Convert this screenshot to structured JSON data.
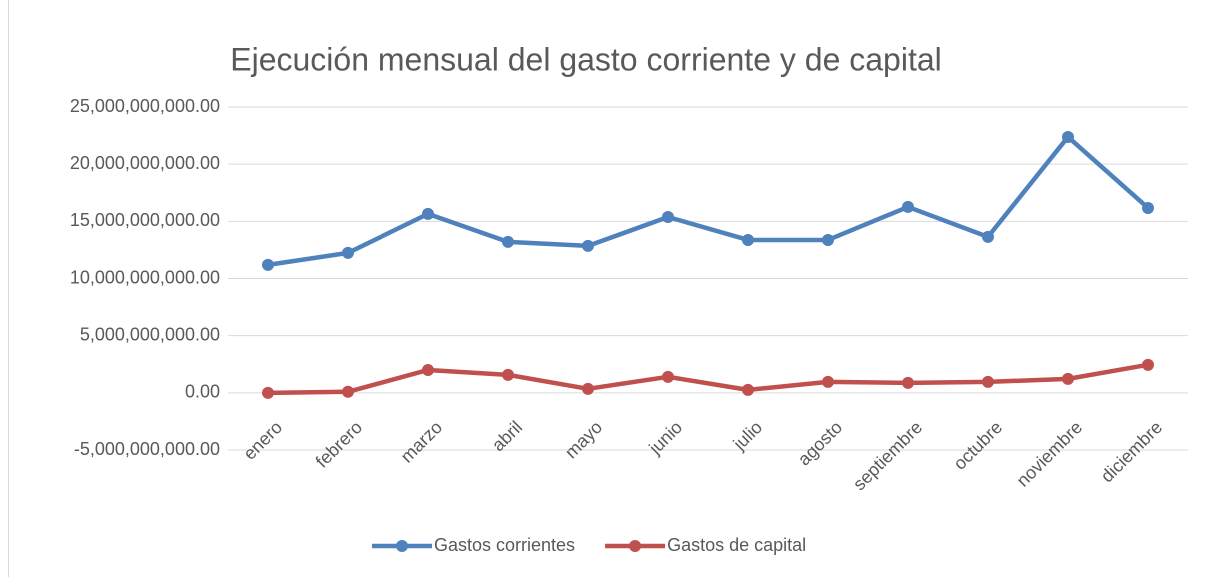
{
  "chart_data": {
    "type": "line",
    "title": "Ejecución mensual del gasto corriente y de capital",
    "categories": [
      "enero",
      "febrero",
      "marzo",
      "abril",
      "mayo",
      "junio",
      "julio",
      "agosto",
      "septiembre",
      "octubre",
      "noviembre",
      "diciembre"
    ],
    "series": [
      {
        "name": "Gastos corrientes",
        "color": "#4f81bd",
        "values": [
          11190000000,
          12240000000,
          15650000000,
          13200000000,
          12850000000,
          15380000000,
          13370000000,
          13370000000,
          16260000000,
          13640000000,
          22380000000,
          16170000000
        ]
      },
      {
        "name": "Gastos de capital",
        "color": "#c0504d",
        "values": [
          0,
          90000000,
          2000000000,
          1570000000,
          350000000,
          1400000000,
          260000000,
          960000000,
          870000000,
          960000000,
          1220000000,
          2450000000
        ]
      }
    ],
    "ylim": [
      -5000000000,
      25000000000
    ],
    "yticks": [
      {
        "value": -5000000000,
        "label": "-5,000,000,000.00"
      },
      {
        "value": 0,
        "label": "0.00"
      },
      {
        "value": 5000000000,
        "label": "5,000,000,000.00"
      },
      {
        "value": 10000000000,
        "label": "10,000,000,000.00"
      },
      {
        "value": 15000000000,
        "label": "15,000,000,000.00"
      },
      {
        "value": 20000000000,
        "label": "20,000,000,000.00"
      },
      {
        "value": 25000000000,
        "label": "25,000,000,000.00"
      }
    ],
    "grid": true,
    "legend": "bottom"
  }
}
